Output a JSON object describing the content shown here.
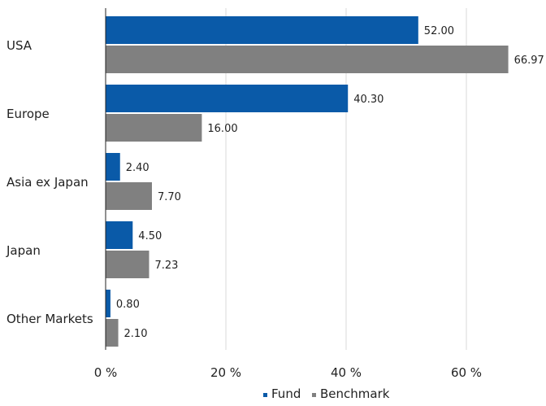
{
  "chart_data": {
    "type": "bar",
    "orientation": "horizontal",
    "categories": [
      "USA",
      "Europe",
      "Asia ex Japan",
      "Japan",
      "Other Markets"
    ],
    "series": [
      {
        "name": "Fund",
        "color": "#0a5aa8",
        "values": [
          52.0,
          40.3,
          2.4,
          4.5,
          0.8
        ],
        "labels": [
          "52.00",
          "40.30",
          "2.40",
          "4.50",
          "0.80"
        ]
      },
      {
        "name": "Benchmark",
        "color": "#808080",
        "values": [
          66.97,
          16.0,
          7.7,
          7.23,
          2.1
        ],
        "labels": [
          "66.97",
          "16.00",
          "7.70",
          "7.23",
          "2.10"
        ]
      }
    ],
    "xlim": [
      0,
      70
    ],
    "xticks": [
      0,
      20,
      40,
      60
    ],
    "xtick_labels": [
      "0 %",
      "20 %",
      "40 %",
      "60 %"
    ],
    "grid": true,
    "legend_position": "bottom"
  }
}
